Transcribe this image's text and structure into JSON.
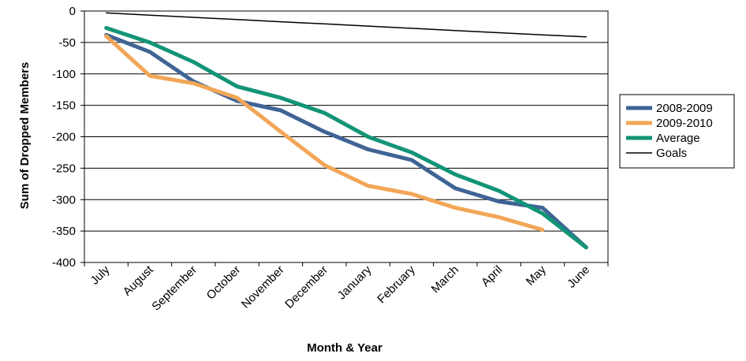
{
  "chart_data": {
    "type": "line",
    "xlabel": "Month & Year",
    "ylabel": "Sum of Dropped Members",
    "categories": [
      "July",
      "August",
      "September",
      "October",
      "November",
      "December",
      "January",
      "February",
      "March",
      "April",
      "May",
      "June"
    ],
    "ylim": [
      -400,
      0
    ],
    "yticks": [
      0,
      -50,
      -100,
      -150,
      -200,
      -250,
      -300,
      -350,
      -400
    ],
    "grid": "horizontal",
    "legend_position": "right",
    "series": [
      {
        "name": "2008-2009",
        "color": "#3f6495",
        "line": "thick",
        "values": [
          -38,
          -65,
          -112,
          -143,
          -158,
          -192,
          -220,
          -237,
          -282,
          -303,
          -313,
          -376
        ]
      },
      {
        "name": "2009-2010",
        "color": "#f2a657",
        "line": "thick",
        "values": [
          -40,
          -103,
          -115,
          -138,
          -192,
          -245,
          -278,
          -291,
          -313,
          -328,
          -348,
          null
        ]
      },
      {
        "name": "Average",
        "color": "#129476",
        "line": "thick",
        "values": [
          -27,
          -50,
          -81,
          -120,
          -138,
          -162,
          -200,
          -225,
          -260,
          -286,
          -322,
          -376
        ]
      },
      {
        "name": "Goals",
        "color": "#000000",
        "line": "thin",
        "values": [
          -3,
          -6.5,
          -10,
          -13.5,
          -17,
          -20.5,
          -24,
          -27.5,
          -31,
          -34.5,
          -38,
          -41
        ]
      }
    ]
  }
}
